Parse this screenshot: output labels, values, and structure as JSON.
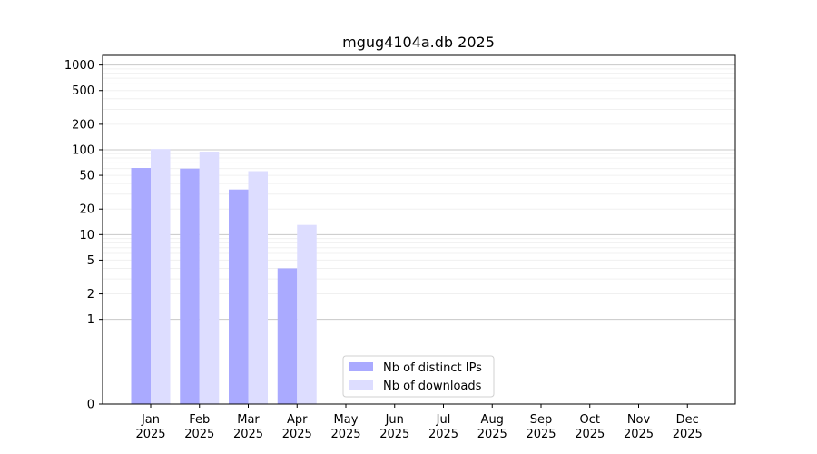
{
  "chart_data": {
    "type": "bar",
    "title": "mgug4104a.db 2025",
    "xlabel": "",
    "ylabel": "",
    "categories": [
      "Jan\n2025",
      "Feb\n2025",
      "Mar\n2025",
      "Apr\n2025",
      "May\n2025",
      "Jun\n2025",
      "Jul\n2025",
      "Aug\n2025",
      "Sep\n2025",
      "Oct\n2025",
      "Nov\n2025",
      "Dec\n2025"
    ],
    "series": [
      {
        "name": "Nb of distinct IPs",
        "color": "#aaaaff",
        "values": [
          61,
          60,
          34,
          4,
          0,
          0,
          0,
          0,
          0,
          0,
          0,
          0
        ]
      },
      {
        "name": "Nb of downloads",
        "color": "#ddddff",
        "values": [
          102,
          95,
          56,
          13,
          0,
          0,
          0,
          0,
          0,
          0,
          0,
          0
        ]
      }
    ],
    "y_scale": "symlog",
    "ylim": [
      0,
      1300
    ],
    "y_ticks": [
      {
        "value": 0,
        "label": "0"
      },
      {
        "value": 1,
        "label": "1"
      },
      {
        "value": 2,
        "label": "2"
      },
      {
        "value": 5,
        "label": "5"
      },
      {
        "value": 10,
        "label": "10"
      },
      {
        "value": 20,
        "label": "20"
      },
      {
        "value": 50,
        "label": "50"
      },
      {
        "value": 100,
        "label": "100"
      },
      {
        "value": 200,
        "label": "200"
      },
      {
        "value": 500,
        "label": "500"
      },
      {
        "value": 1000,
        "label": "1000"
      }
    ],
    "grid": true,
    "legend_position": "lower-center"
  }
}
